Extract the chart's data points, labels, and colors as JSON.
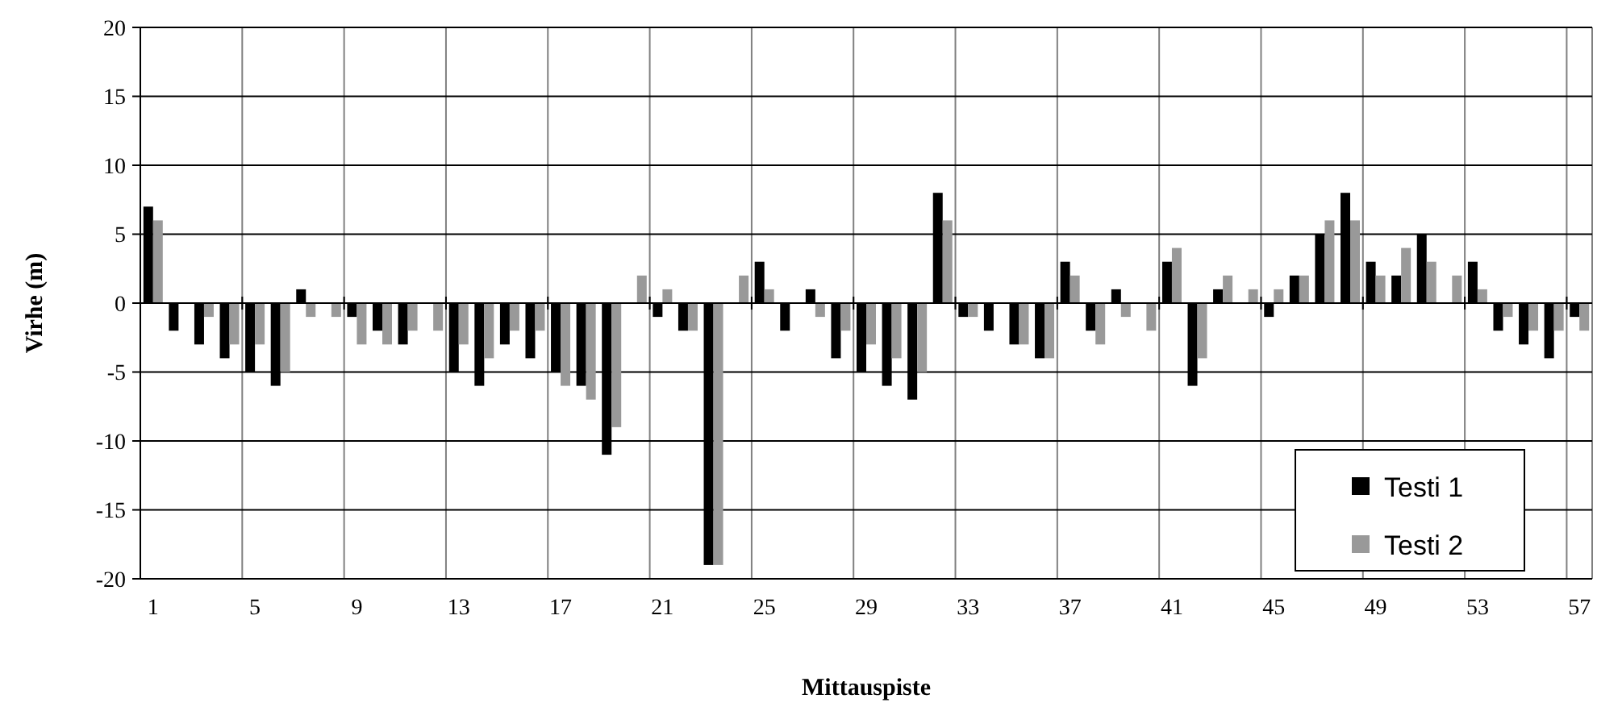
{
  "chart_data": {
    "type": "bar",
    "xlabel": "Mittauspiste",
    "ylabel": "Virhe (m)",
    "categories": [
      "1",
      null,
      null,
      null,
      "5",
      null,
      null,
      null,
      "9",
      null,
      null,
      null,
      "13",
      null,
      null,
      null,
      "17",
      null,
      null,
      null,
      "21",
      null,
      null,
      null,
      "25",
      null,
      null,
      null,
      "29",
      null,
      null,
      null,
      "33",
      null,
      null,
      null,
      "37",
      null,
      null,
      null,
      "41",
      null,
      null,
      null,
      "45",
      null,
      null,
      null,
      "49",
      null,
      null,
      null,
      "53",
      null,
      null,
      null,
      "57"
    ],
    "series": [
      {
        "name": "Testi 1",
        "color": "#000000",
        "values": [
          7,
          -2,
          -3,
          -4,
          -5,
          -6,
          1,
          0,
          -1,
          -2,
          -3,
          0,
          -5,
          -6,
          -3,
          -4,
          -5,
          -6,
          -11,
          0,
          -1,
          -2,
          -19,
          0,
          3,
          -2,
          1,
          -4,
          -5,
          -6,
          -7,
          8,
          -1,
          -2,
          -3,
          -4,
          3,
          -2,
          1,
          0,
          3,
          -6,
          1,
          0,
          -1,
          2,
          5,
          8,
          3,
          2,
          5,
          0,
          3,
          -2,
          -3,
          -4,
          -1
        ]
      },
      {
        "name": "Testi 2",
        "color": "#999999",
        "values": [
          6,
          0,
          -1,
          -3,
          -3,
          -5,
          -1,
          -1,
          -3,
          -3,
          -2,
          -2,
          -3,
          -4,
          -2,
          -2,
          -6,
          -7,
          -9,
          2,
          1,
          -2,
          -19,
          2,
          1,
          0,
          -1,
          -2,
          -3,
          -4,
          -5,
          6,
          -1,
          0,
          -3,
          -4,
          2,
          -3,
          -1,
          -2,
          4,
          -4,
          2,
          1,
          1,
          2,
          6,
          6,
          2,
          4,
          3,
          2,
          1,
          -1,
          -2,
          -2,
          -2
        ]
      }
    ],
    "ylim": [
      -20,
      20
    ],
    "yticks": [
      -20,
      -15,
      -10,
      -5,
      0,
      5,
      10,
      15,
      20
    ],
    "grid": true,
    "legend": "bottom right"
  }
}
